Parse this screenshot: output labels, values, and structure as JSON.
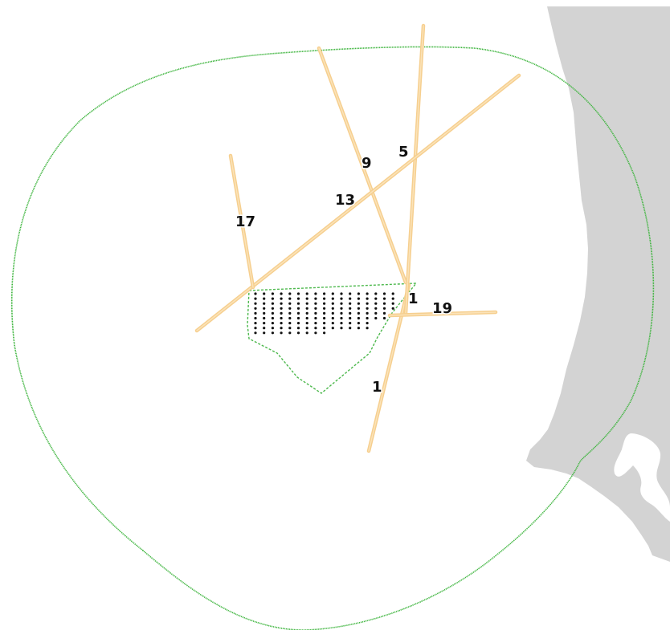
{
  "map": {
    "colors": {
      "land": "#d3d3d3",
      "buffer_outline": "#3cb43c",
      "site_outline": "#4cb84c",
      "route_line": "#f6cf8f",
      "turbine": "#111111"
    },
    "routes": [
      {
        "id": "route-1-south",
        "label": "1"
      },
      {
        "id": "route-1-north",
        "label": "1"
      },
      {
        "id": "route-5",
        "label": "5"
      },
      {
        "id": "route-9",
        "label": "9"
      },
      {
        "id": "route-13",
        "label": "13"
      },
      {
        "id": "route-17",
        "label": "17"
      },
      {
        "id": "route-19",
        "label": "19"
      }
    ],
    "turbine_grid": {
      "rows": 9,
      "columns": 17
    }
  }
}
